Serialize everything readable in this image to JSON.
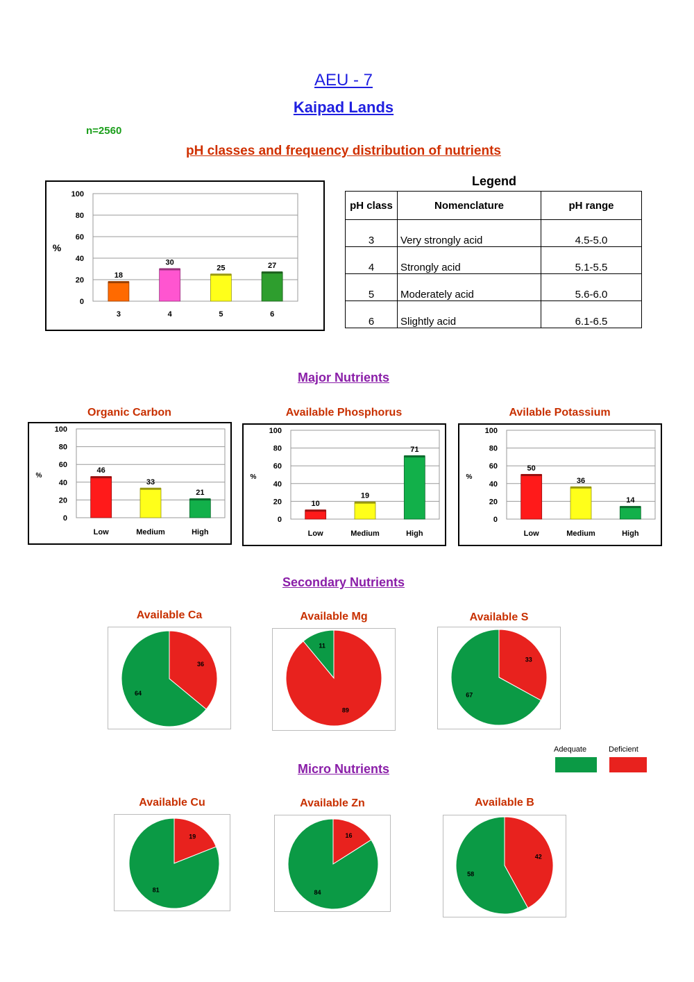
{
  "header": {
    "title": "AEU - 7",
    "subtitle": "Kaipad Lands",
    "sample_count": "n=2560",
    "section_ph": "pH classes and frequency distribution of nutrients",
    "section_major": "Major Nutrients",
    "section_secondary": "Secondary Nutrients",
    "section_micro": "Micro Nutrients"
  },
  "legend": {
    "title": "Legend",
    "headers": [
      "pH class",
      "Nomenclature",
      "pH range"
    ],
    "rows": [
      {
        "cls": "3",
        "name": "Very strongly acid",
        "range": "4.5-5.0"
      },
      {
        "cls": "4",
        "name": "Strongly acid",
        "range": "5.1-5.5"
      },
      {
        "cls": "5",
        "name": "Moderately acid",
        "range": "5.6-6.0"
      },
      {
        "cls": "6",
        "name": "Slightly acid",
        "range": "6.1-6.5"
      }
    ]
  },
  "pie_legend": {
    "adequate": {
      "label": "Adequate",
      "color": "#0b9a45"
    },
    "deficient": {
      "label": "Deficient",
      "color": "#e8221e"
    }
  },
  "chart_data": [
    {
      "id": "ph",
      "type": "bar",
      "title": "",
      "ylabel": "%",
      "ylim": [
        0,
        100
      ],
      "yticks": [
        0,
        20,
        40,
        60,
        80,
        100
      ],
      "grid": true,
      "categories": [
        "3",
        "4",
        "5",
        "6"
      ],
      "values": [
        18,
        30,
        25,
        27
      ],
      "colors": [
        "#ff6a00",
        "#ff55d0",
        "#ffff1a",
        "#2e9e2e"
      ]
    },
    {
      "id": "oc",
      "type": "bar",
      "title": "Organic Carbon",
      "ylabel": "%",
      "ylim": [
        0,
        100
      ],
      "yticks": [
        0,
        20,
        40,
        60,
        80,
        100
      ],
      "grid": true,
      "categories": [
        "Low",
        "Medium",
        "High"
      ],
      "values": [
        46,
        33,
        21
      ],
      "colors": [
        "#ff1a1a",
        "#ffff1a",
        "#12b04a"
      ]
    },
    {
      "id": "p",
      "type": "bar",
      "title": "Available Phosphorus",
      "ylabel": "%",
      "ylim": [
        0,
        100
      ],
      "yticks": [
        0,
        20,
        40,
        60,
        80,
        100
      ],
      "grid": true,
      "categories": [
        "Low",
        "Medium",
        "High"
      ],
      "values": [
        10,
        19,
        71
      ],
      "colors": [
        "#ff1a1a",
        "#ffff1a",
        "#12b04a"
      ]
    },
    {
      "id": "k",
      "type": "bar",
      "title": "Avilable Potassium",
      "ylabel": "%",
      "ylim": [
        0,
        100
      ],
      "yticks": [
        0,
        20,
        40,
        60,
        80,
        100
      ],
      "grid": true,
      "categories": [
        "Low",
        "Medium",
        "High"
      ],
      "values": [
        50,
        36,
        14
      ],
      "colors": [
        "#ff1a1a",
        "#ffff1a",
        "#12b04a"
      ]
    },
    {
      "id": "ca",
      "type": "pie",
      "title": "Available Ca",
      "labels": [
        "Deficient",
        "Adequate"
      ],
      "values": [
        36,
        64
      ]
    },
    {
      "id": "mg",
      "type": "pie",
      "title": "Available Mg",
      "labels": [
        "Deficient",
        "Adequate"
      ],
      "values": [
        89,
        11
      ]
    },
    {
      "id": "s",
      "type": "pie",
      "title": "Available S",
      "labels": [
        "Deficient",
        "Adequate"
      ],
      "values": [
        33,
        67
      ]
    },
    {
      "id": "cu",
      "type": "pie",
      "title": "Available Cu",
      "labels": [
        "Deficient",
        "Adequate"
      ],
      "values": [
        19,
        81
      ]
    },
    {
      "id": "zn",
      "type": "pie",
      "title": "Available Zn",
      "labels": [
        "Deficient",
        "Adequate"
      ],
      "values": [
        16,
        84
      ]
    },
    {
      "id": "b",
      "type": "pie",
      "title": "Available B",
      "labels": [
        "Deficient",
        "Adequate"
      ],
      "values": [
        42,
        58
      ]
    }
  ]
}
